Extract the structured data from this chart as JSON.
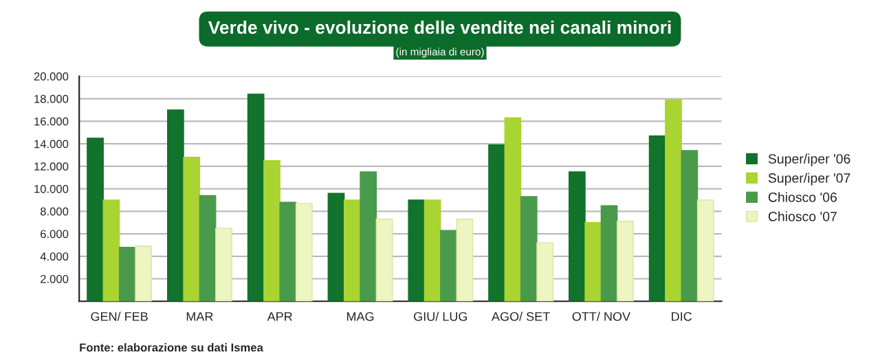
{
  "chart_data": {
    "type": "bar",
    "title": "Verde vivo - evoluzione delle vendite nei canali minori",
    "subtitle": "(in migliaia di euro)",
    "categories": [
      "GEN/ FEB",
      "MAR",
      "APR",
      "MAG",
      "GIU/ LUG",
      "AGO/ SET",
      "OTT/ NOV",
      "DIC"
    ],
    "series": [
      {
        "name": "Super/iper '06",
        "color": "#11732c",
        "values": [
          14500,
          17000,
          18400,
          9600,
          9000,
          13900,
          11500,
          14700
        ]
      },
      {
        "name": "Super/iper '07",
        "color": "#a9d431",
        "values": [
          9000,
          12800,
          12500,
          9000,
          9000,
          16300,
          7000,
          17900
        ]
      },
      {
        "name": "Chiosco '06",
        "color": "#4a9a4c",
        "values": [
          4800,
          9400,
          8800,
          11500,
          6300,
          9300,
          8500,
          13400
        ]
      },
      {
        "name": "Chiosco '07",
        "color": "#eef4c2",
        "values": [
          4900,
          6500,
          8700,
          7300,
          7300,
          5200,
          7100,
          9000
        ]
      }
    ],
    "ylim": [
      0,
      20000
    ],
    "yticks": [
      {
        "value": 0,
        "label": null
      },
      {
        "value": 2000,
        "label": "2.000"
      },
      {
        "value": 4000,
        "label": "4.000"
      },
      {
        "value": 6000,
        "label": "6.000"
      },
      {
        "value": 8000,
        "label": "8.000"
      },
      {
        "value": 10000,
        "label": "10.000"
      },
      {
        "value": 12000,
        "label": "12.000"
      },
      {
        "value": 14000,
        "label": "14.000"
      },
      {
        "value": 16000,
        "label": "16.000"
      },
      {
        "value": 18000,
        "label": "18.000"
      },
      {
        "value": 20000,
        "label": "20.000"
      }
    ],
    "grid": "y",
    "legend": "right",
    "annotations": [
      "Fonte: elaborazione su dati Ismea"
    ]
  }
}
